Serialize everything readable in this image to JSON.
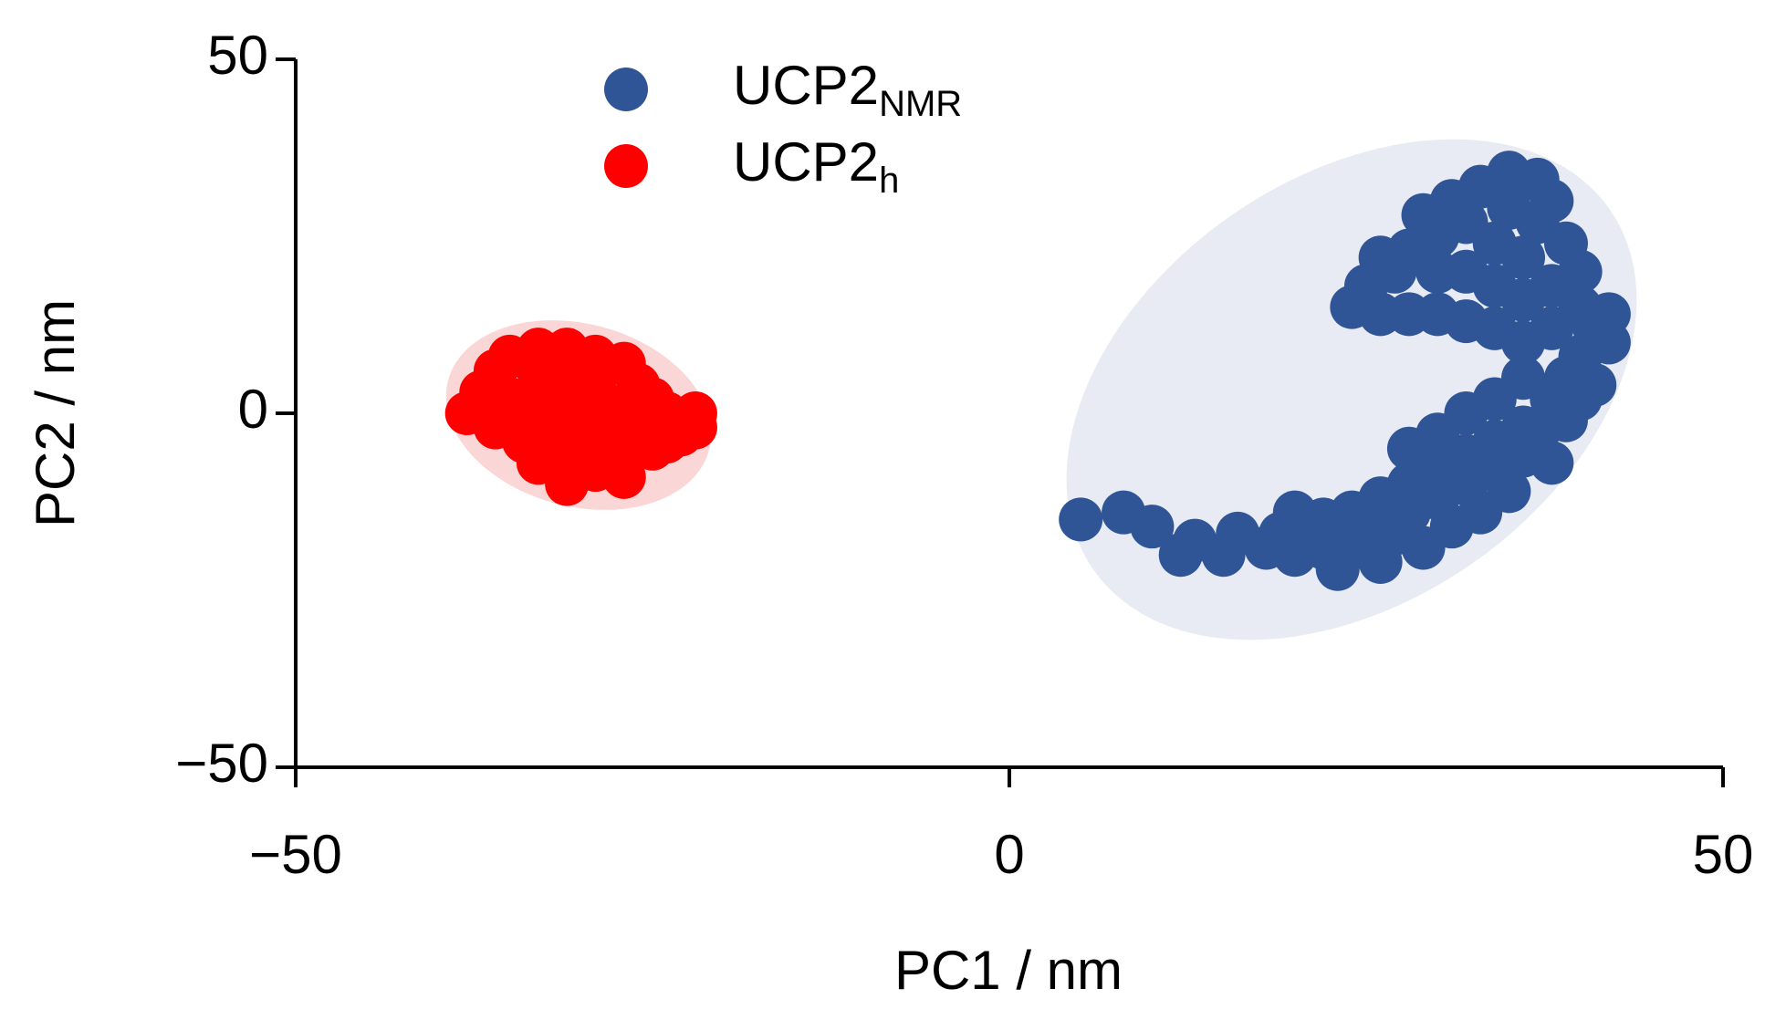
{
  "chart_data": {
    "type": "scatter",
    "xlabel": "PC1 / nm",
    "ylabel": "PC2 / nm",
    "xlim": [
      -50,
      50
    ],
    "ylim": [
      -50,
      50
    ],
    "xticks": [
      {
        "value": -50,
        "label": "−50"
      },
      0,
      50
    ],
    "yticks": [
      {
        "value": -50,
        "label": "−50"
      },
      0,
      50
    ],
    "series": [
      {
        "name": "UCP2",
        "name_subscript": "NMR",
        "color": "#2f5597",
        "x": [
          5,
          8,
          10,
          12,
          13,
          15,
          16,
          18,
          20,
          21,
          23,
          24,
          26,
          27,
          28,
          29,
          30,
          31,
          32,
          33,
          34,
          35,
          36,
          37,
          38,
          39,
          40,
          38,
          36,
          34,
          32,
          30,
          28,
          26,
          24,
          22,
          20,
          25,
          22,
          19,
          39,
          40,
          41,
          42,
          40,
          38,
          36,
          34,
          32,
          30,
          28,
          26,
          24,
          25,
          27,
          26,
          28,
          30,
          29,
          31,
          33,
          35,
          37,
          38,
          37,
          39,
          40,
          38,
          36,
          34,
          32,
          34,
          36,
          32,
          35,
          30,
          42,
          41,
          36,
          34,
          32,
          30,
          28
        ],
        "y": [
          -15,
          -14,
          -16,
          -20,
          -18,
          -20,
          -17,
          -19,
          -20,
          -17,
          -22,
          -19,
          -21,
          -17,
          -14,
          -19,
          -12,
          -16,
          -10,
          -14,
          -8,
          -11,
          -6,
          -3,
          -7,
          -1,
          2,
          2,
          -2,
          -4,
          -6,
          -8,
          -10,
          -12,
          -14,
          -15,
          -14,
          -16,
          -19,
          -17,
          5,
          8,
          12,
          10,
          15,
          12,
          10,
          12,
          13,
          14,
          14,
          14,
          15,
          18,
          20,
          22,
          23,
          25,
          28,
          30,
          32,
          34,
          33,
          30,
          27,
          24,
          20,
          18,
          16,
          18,
          20,
          24,
          22,
          27,
          29,
          20,
          14,
          4,
          5,
          2,
          0,
          -3,
          -5
        ]
      },
      {
        "name": "UCP2",
        "name_subscript": "h",
        "color": "#ff0000",
        "x": [
          -38,
          -37,
          -36,
          -35,
          -33,
          -31,
          -29,
          -27,
          -26,
          -25,
          -24,
          -22,
          -23,
          -25,
          -27,
          -29,
          -31,
          -33,
          -34,
          -36,
          -35,
          -33,
          -31,
          -29,
          -27,
          -28,
          -30,
          -32,
          -30,
          -32,
          -28,
          -26,
          -34,
          -30,
          -33,
          -24,
          -22,
          -27,
          -31
        ],
        "y": [
          0,
          3,
          6,
          8,
          9,
          9,
          8,
          7,
          4,
          2,
          0,
          0,
          -3,
          -5,
          -7,
          -8,
          -8,
          -7,
          -4,
          -2,
          2,
          3,
          4,
          3,
          1,
          -2,
          -3,
          -1,
          1,
          -5,
          -5,
          -2,
          1,
          6,
          6,
          -4,
          -2,
          -9,
          -10
        ]
      }
    ]
  }
}
